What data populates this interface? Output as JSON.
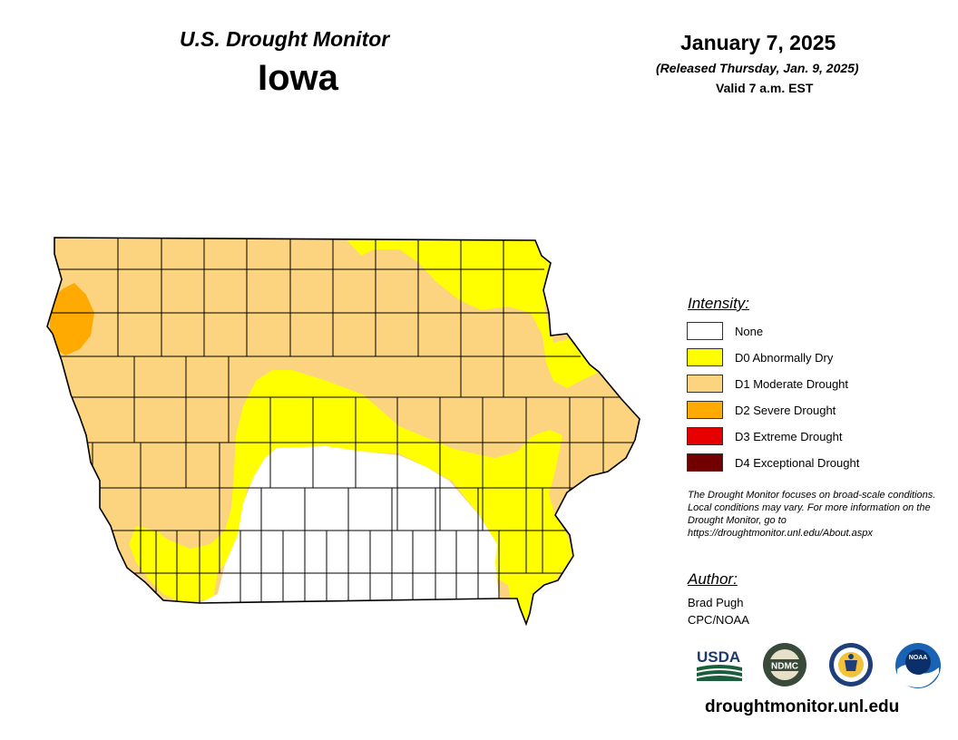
{
  "header": {
    "monitor_title": "U.S. Drought Monitor",
    "state": "Iowa",
    "date": "January 7, 2025",
    "released": "(Released Thursday, Jan. 9, 2025)",
    "valid": "Valid 7 a.m. EST"
  },
  "legend": {
    "heading": "Intensity:",
    "items": [
      {
        "code": "None",
        "label": "None",
        "color": "#ffffff"
      },
      {
        "code": "D0",
        "label": "D0 Abnormally Dry",
        "color": "#ffff00"
      },
      {
        "code": "D1",
        "label": "D1 Moderate Drought",
        "color": "#fcd37f"
      },
      {
        "code": "D2",
        "label": "D2 Severe Drought",
        "color": "#ffaa00"
      },
      {
        "code": "D3",
        "label": "D3 Extreme Drought",
        "color": "#e60000"
      },
      {
        "code": "D4",
        "label": "D4 Exceptional Drought",
        "color": "#730000"
      }
    ]
  },
  "note": "The Drought Monitor focuses on broad-scale conditions. Local conditions may vary. For more information on the Drought Monitor, go to https://droughtmonitor.unl.edu/About.aspx",
  "author": {
    "heading": "Author:",
    "name": "Brad Pugh",
    "org": "CPC/NOAA"
  },
  "logos": [
    {
      "name": "usda-logo",
      "text": "USDA"
    },
    {
      "name": "ndmc-logo",
      "text": "NDMC"
    },
    {
      "name": "doc-seal-logo",
      "text": ""
    },
    {
      "name": "noaa-logo",
      "text": "NOAA"
    }
  ],
  "footer_url": "droughtmonitor.unl.edu",
  "colors": {
    "none": "#ffffff",
    "d0": "#ffff00",
    "d1": "#fcd37f",
    "d2": "#ffaa00",
    "border": "#000000"
  }
}
